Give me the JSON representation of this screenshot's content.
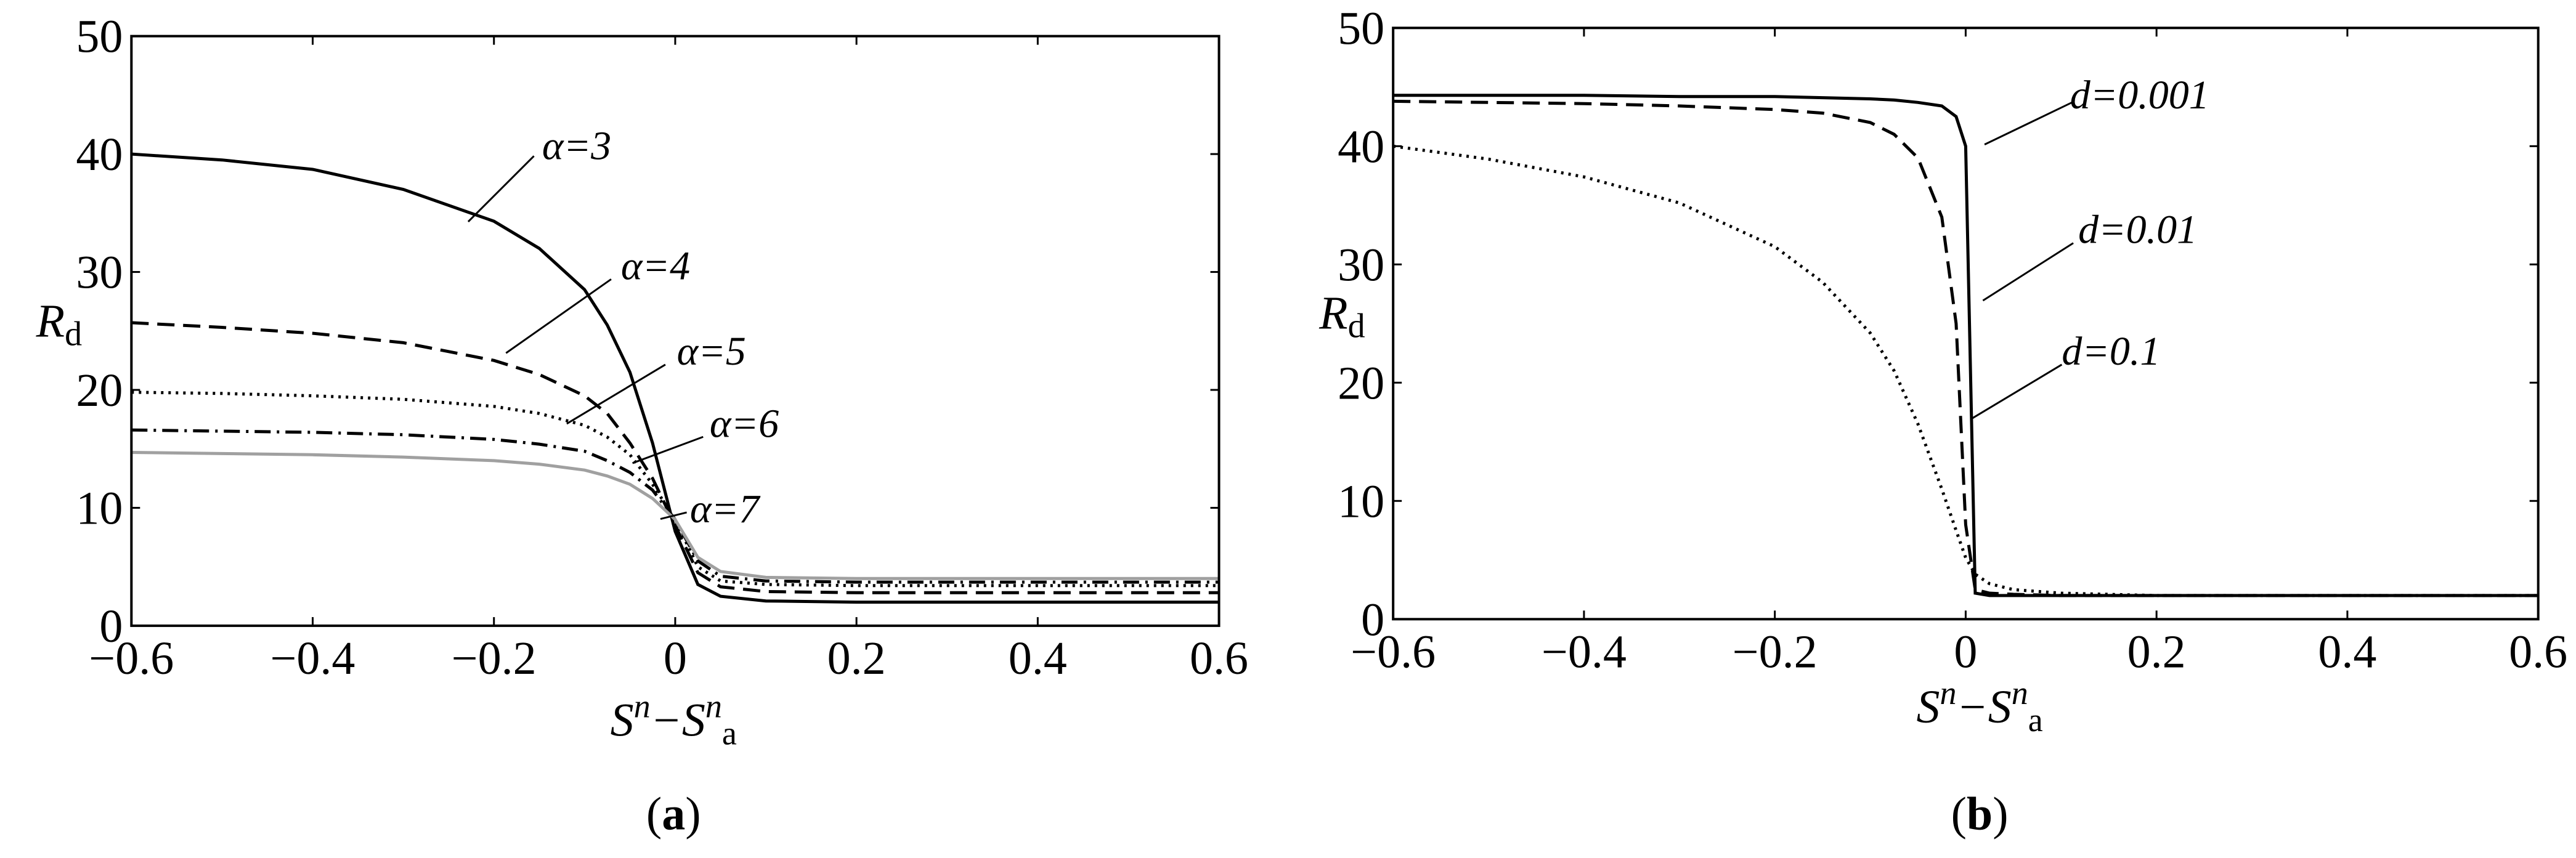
{
  "chart_data": [
    {
      "type": "line",
      "caption": "a",
      "xlabel": [
        "S",
        "n",
        "−S",
        "n",
        "a"
      ],
      "ylabel": [
        "R",
        "d"
      ],
      "xlim": [
        -0.6,
        0.6
      ],
      "ylim": [
        0,
        50
      ],
      "xticks": [
        {
          "value": -0.6,
          "label": "−0.6"
        },
        {
          "value": -0.4,
          "label": "−0.4"
        },
        {
          "value": -0.2,
          "label": "−0.2"
        },
        0,
        0.2,
        0.4,
        0.6
      ],
      "yticks": [
        0,
        10,
        20,
        30,
        40,
        50
      ],
      "x": [
        -0.6,
        -0.5,
        -0.4,
        -0.3,
        -0.2,
        -0.15,
        -0.1,
        -0.075,
        -0.05,
        -0.025,
        0,
        0.025,
        0.05,
        0.1,
        0.2,
        0.3,
        0.4,
        0.5,
        0.6
      ],
      "series": [
        {
          "name": "α=3",
          "color": "#000000",
          "dash": "solid",
          "values": [
            40,
            39.5,
            38.7,
            37,
            34.3,
            32,
            28.5,
            25.5,
            21.5,
            15.5,
            8,
            3.5,
            2.5,
            2.1,
            2,
            2,
            2,
            2,
            2
          ]
        },
        {
          "name": "α=4",
          "color": "#000000",
          "dash": "dashed",
          "values": [
            25.7,
            25.3,
            24.8,
            24,
            22.5,
            21.3,
            19.5,
            18,
            15.5,
            12.5,
            8.5,
            4.5,
            3.3,
            2.9,
            2.8,
            2.8,
            2.8,
            2.8,
            2.8
          ]
        },
        {
          "name": "α=5",
          "color": "#000000",
          "dash": "dotted",
          "values": [
            19.8,
            19.7,
            19.5,
            19.2,
            18.6,
            18,
            17,
            16,
            14.5,
            12,
            9,
            5,
            3.8,
            3.5,
            3.4,
            3.4,
            3.4,
            3.4,
            3.4
          ]
        },
        {
          "name": "α=6",
          "color": "#000000",
          "dash": "dashdot",
          "values": [
            16.6,
            16.5,
            16.4,
            16.2,
            15.8,
            15.4,
            14.8,
            14,
            13,
            11.5,
            9,
            5.5,
            4.2,
            3.8,
            3.7,
            3.7,
            3.7,
            3.7,
            3.7
          ]
        },
        {
          "name": "α=7",
          "color": "#a0a0a0",
          "dash": "solid",
          "values": [
            14.7,
            14.6,
            14.5,
            14.3,
            14,
            13.7,
            13.2,
            12.7,
            12,
            10.8,
            9,
            5.8,
            4.6,
            4.1,
            4,
            4,
            4,
            4,
            4
          ]
        }
      ]
    },
    {
      "type": "line",
      "caption": "b",
      "xlabel": [
        "S",
        "n",
        "−S",
        "n",
        "a"
      ],
      "ylabel": [
        "R",
        "d"
      ],
      "xlim": [
        -0.6,
        0.6
      ],
      "ylim": [
        0,
        50
      ],
      "xticks": [
        {
          "value": -0.6,
          "label": "−0.6"
        },
        {
          "value": -0.4,
          "label": "−0.4"
        },
        {
          "value": -0.2,
          "label": "−0.2"
        },
        0,
        0.2,
        0.4,
        0.6
      ],
      "yticks": [
        0,
        10,
        20,
        30,
        40,
        50
      ],
      "x": [
        -0.6,
        -0.5,
        -0.4,
        -0.3,
        -0.2,
        -0.15,
        -0.1,
        -0.075,
        -0.05,
        -0.025,
        -0.01,
        0,
        0.01,
        0.025,
        0.05,
        0.1,
        0.2,
        0.3,
        0.4,
        0.5,
        0.6
      ],
      "series": [
        {
          "name": "d=0.001",
          "color": "#000000",
          "dash": "solid",
          "values": [
            44.3,
            44.3,
            44.3,
            44.2,
            44.2,
            44.1,
            44,
            43.9,
            43.7,
            43.4,
            42.5,
            40,
            2.2,
            2,
            2,
            2,
            2,
            2,
            2,
            2,
            2
          ]
        },
        {
          "name": "d=0.01",
          "color": "#000000",
          "dash": "dashed",
          "values": [
            43.8,
            43.7,
            43.6,
            43.4,
            43.1,
            42.8,
            42,
            41,
            39,
            34,
            25,
            8,
            2.5,
            2.2,
            2.1,
            2,
            2,
            2,
            2,
            2,
            2
          ]
        },
        {
          "name": "d=0.1",
          "color": "#000000",
          "dash": "dotted",
          "values": [
            40,
            38.9,
            37.4,
            35.2,
            31.5,
            28.5,
            24.2,
            21,
            16.5,
            11,
            7.5,
            5.2,
            3.8,
            3,
            2.5,
            2.2,
            2,
            2,
            2,
            2,
            2
          ]
        }
      ]
    }
  ]
}
